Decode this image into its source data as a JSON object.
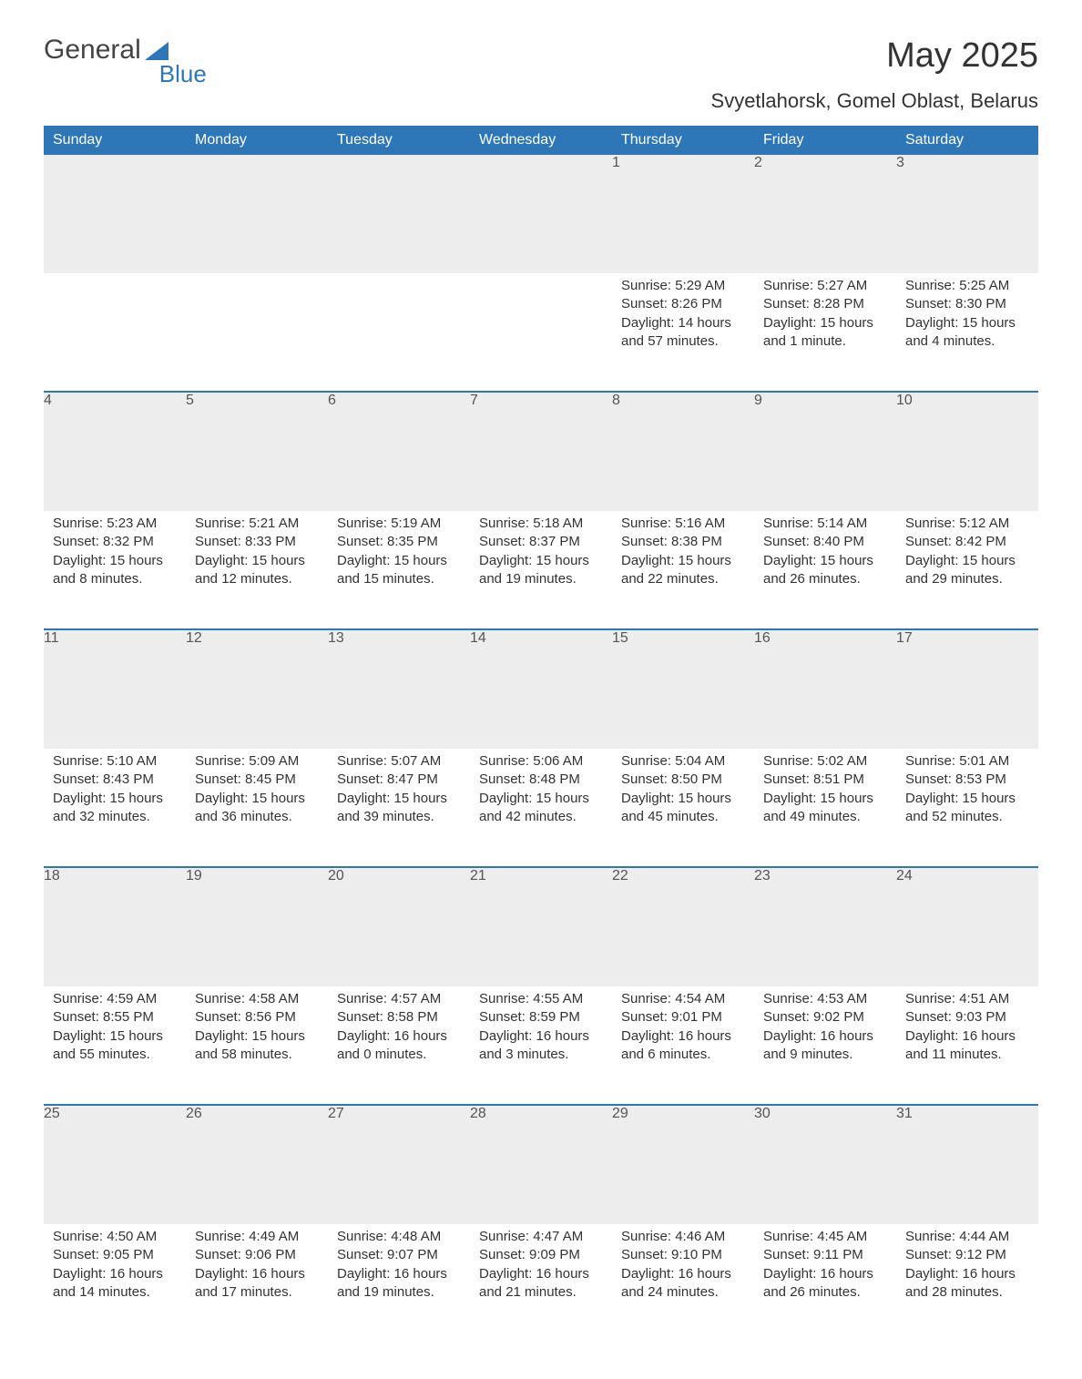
{
  "logo": {
    "text_main": "General",
    "text_sub": "Blue",
    "main_color": "#444444",
    "sub_color": "#2d76b8"
  },
  "title": "May 2025",
  "subtitle": "Svyetlahorsk, Gomel Oblast, Belarus",
  "day_headers": [
    "Sunday",
    "Monday",
    "Tuesday",
    "Wednesday",
    "Thursday",
    "Friday",
    "Saturday"
  ],
  "colors": {
    "header_bg": "#2d76b8",
    "header_text": "#ffffff",
    "daynum_bg": "#ededed",
    "text": "#333333",
    "rule": "#2d76b8",
    "background": "#ffffff"
  },
  "fonts": {
    "title_size_pt": 28,
    "subtitle_size_pt": 16,
    "header_size_pt": 12,
    "body_size_pt": 11
  },
  "weeks": [
    [
      null,
      null,
      null,
      null,
      {
        "n": "1",
        "sunrise": "Sunrise: 5:29 AM",
        "sunset": "Sunset: 8:26 PM",
        "dl1": "Daylight: 14 hours",
        "dl2": "and 57 minutes."
      },
      {
        "n": "2",
        "sunrise": "Sunrise: 5:27 AM",
        "sunset": "Sunset: 8:28 PM",
        "dl1": "Daylight: 15 hours",
        "dl2": "and 1 minute."
      },
      {
        "n": "3",
        "sunrise": "Sunrise: 5:25 AM",
        "sunset": "Sunset: 8:30 PM",
        "dl1": "Daylight: 15 hours",
        "dl2": "and 4 minutes."
      }
    ],
    [
      {
        "n": "4",
        "sunrise": "Sunrise: 5:23 AM",
        "sunset": "Sunset: 8:32 PM",
        "dl1": "Daylight: 15 hours",
        "dl2": "and 8 minutes."
      },
      {
        "n": "5",
        "sunrise": "Sunrise: 5:21 AM",
        "sunset": "Sunset: 8:33 PM",
        "dl1": "Daylight: 15 hours",
        "dl2": "and 12 minutes."
      },
      {
        "n": "6",
        "sunrise": "Sunrise: 5:19 AM",
        "sunset": "Sunset: 8:35 PM",
        "dl1": "Daylight: 15 hours",
        "dl2": "and 15 minutes."
      },
      {
        "n": "7",
        "sunrise": "Sunrise: 5:18 AM",
        "sunset": "Sunset: 8:37 PM",
        "dl1": "Daylight: 15 hours",
        "dl2": "and 19 minutes."
      },
      {
        "n": "8",
        "sunrise": "Sunrise: 5:16 AM",
        "sunset": "Sunset: 8:38 PM",
        "dl1": "Daylight: 15 hours",
        "dl2": "and 22 minutes."
      },
      {
        "n": "9",
        "sunrise": "Sunrise: 5:14 AM",
        "sunset": "Sunset: 8:40 PM",
        "dl1": "Daylight: 15 hours",
        "dl2": "and 26 minutes."
      },
      {
        "n": "10",
        "sunrise": "Sunrise: 5:12 AM",
        "sunset": "Sunset: 8:42 PM",
        "dl1": "Daylight: 15 hours",
        "dl2": "and 29 minutes."
      }
    ],
    [
      {
        "n": "11",
        "sunrise": "Sunrise: 5:10 AM",
        "sunset": "Sunset: 8:43 PM",
        "dl1": "Daylight: 15 hours",
        "dl2": "and 32 minutes."
      },
      {
        "n": "12",
        "sunrise": "Sunrise: 5:09 AM",
        "sunset": "Sunset: 8:45 PM",
        "dl1": "Daylight: 15 hours",
        "dl2": "and 36 minutes."
      },
      {
        "n": "13",
        "sunrise": "Sunrise: 5:07 AM",
        "sunset": "Sunset: 8:47 PM",
        "dl1": "Daylight: 15 hours",
        "dl2": "and 39 minutes."
      },
      {
        "n": "14",
        "sunrise": "Sunrise: 5:06 AM",
        "sunset": "Sunset: 8:48 PM",
        "dl1": "Daylight: 15 hours",
        "dl2": "and 42 minutes."
      },
      {
        "n": "15",
        "sunrise": "Sunrise: 5:04 AM",
        "sunset": "Sunset: 8:50 PM",
        "dl1": "Daylight: 15 hours",
        "dl2": "and 45 minutes."
      },
      {
        "n": "16",
        "sunrise": "Sunrise: 5:02 AM",
        "sunset": "Sunset: 8:51 PM",
        "dl1": "Daylight: 15 hours",
        "dl2": "and 49 minutes."
      },
      {
        "n": "17",
        "sunrise": "Sunrise: 5:01 AM",
        "sunset": "Sunset: 8:53 PM",
        "dl1": "Daylight: 15 hours",
        "dl2": "and 52 minutes."
      }
    ],
    [
      {
        "n": "18",
        "sunrise": "Sunrise: 4:59 AM",
        "sunset": "Sunset: 8:55 PM",
        "dl1": "Daylight: 15 hours",
        "dl2": "and 55 minutes."
      },
      {
        "n": "19",
        "sunrise": "Sunrise: 4:58 AM",
        "sunset": "Sunset: 8:56 PM",
        "dl1": "Daylight: 15 hours",
        "dl2": "and 58 minutes."
      },
      {
        "n": "20",
        "sunrise": "Sunrise: 4:57 AM",
        "sunset": "Sunset: 8:58 PM",
        "dl1": "Daylight: 16 hours",
        "dl2": "and 0 minutes."
      },
      {
        "n": "21",
        "sunrise": "Sunrise: 4:55 AM",
        "sunset": "Sunset: 8:59 PM",
        "dl1": "Daylight: 16 hours",
        "dl2": "and 3 minutes."
      },
      {
        "n": "22",
        "sunrise": "Sunrise: 4:54 AM",
        "sunset": "Sunset: 9:01 PM",
        "dl1": "Daylight: 16 hours",
        "dl2": "and 6 minutes."
      },
      {
        "n": "23",
        "sunrise": "Sunrise: 4:53 AM",
        "sunset": "Sunset: 9:02 PM",
        "dl1": "Daylight: 16 hours",
        "dl2": "and 9 minutes."
      },
      {
        "n": "24",
        "sunrise": "Sunrise: 4:51 AM",
        "sunset": "Sunset: 9:03 PM",
        "dl1": "Daylight: 16 hours",
        "dl2": "and 11 minutes."
      }
    ],
    [
      {
        "n": "25",
        "sunrise": "Sunrise: 4:50 AM",
        "sunset": "Sunset: 9:05 PM",
        "dl1": "Daylight: 16 hours",
        "dl2": "and 14 minutes."
      },
      {
        "n": "26",
        "sunrise": "Sunrise: 4:49 AM",
        "sunset": "Sunset: 9:06 PM",
        "dl1": "Daylight: 16 hours",
        "dl2": "and 17 minutes."
      },
      {
        "n": "27",
        "sunrise": "Sunrise: 4:48 AM",
        "sunset": "Sunset: 9:07 PM",
        "dl1": "Daylight: 16 hours",
        "dl2": "and 19 minutes."
      },
      {
        "n": "28",
        "sunrise": "Sunrise: 4:47 AM",
        "sunset": "Sunset: 9:09 PM",
        "dl1": "Daylight: 16 hours",
        "dl2": "and 21 minutes."
      },
      {
        "n": "29",
        "sunrise": "Sunrise: 4:46 AM",
        "sunset": "Sunset: 9:10 PM",
        "dl1": "Daylight: 16 hours",
        "dl2": "and 24 minutes."
      },
      {
        "n": "30",
        "sunrise": "Sunrise: 4:45 AM",
        "sunset": "Sunset: 9:11 PM",
        "dl1": "Daylight: 16 hours",
        "dl2": "and 26 minutes."
      },
      {
        "n": "31",
        "sunrise": "Sunrise: 4:44 AM",
        "sunset": "Sunset: 9:12 PM",
        "dl1": "Daylight: 16 hours",
        "dl2": "and 28 minutes."
      }
    ]
  ]
}
